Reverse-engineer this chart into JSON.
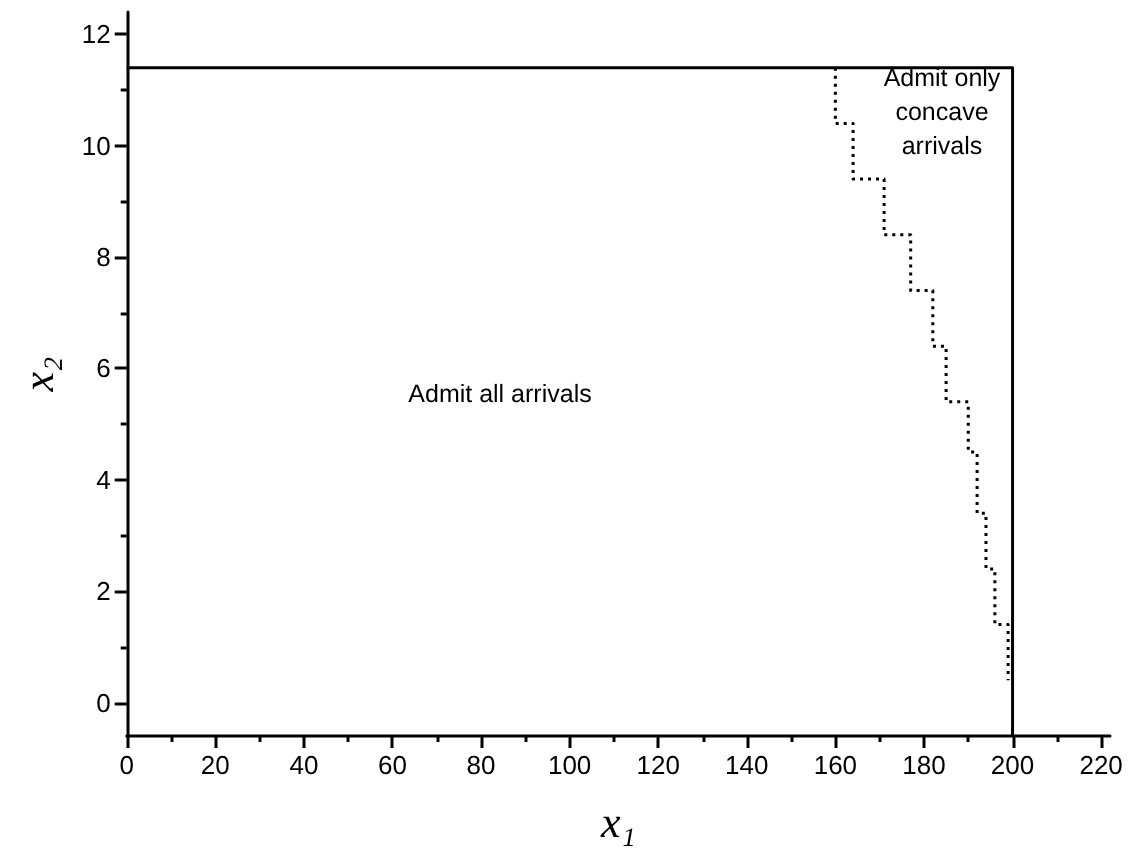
{
  "chart_data": {
    "type": "line",
    "xlabel": "x₁",
    "ylabel": "x₂",
    "xlim": [
      0,
      222
    ],
    "ylim": [
      -0.6,
      12.4
    ],
    "xticks": [
      0,
      20,
      40,
      60,
      80,
      100,
      120,
      140,
      160,
      180,
      200,
      220
    ],
    "yticks": [
      0,
      2,
      4,
      6,
      8,
      10,
      12
    ],
    "grid": false,
    "marker": "none",
    "series": [
      {
        "color": "#000000",
        "line_style": "solid",
        "x": [
          0,
          200,
          200
        ],
        "values": [
          11.4,
          11.4,
          -0.6
        ]
      },
      {
        "type": "step",
        "color": "#000000",
        "line_style": "dotted",
        "x": [
          160,
          164,
          171,
          177,
          182,
          185,
          190,
          192,
          194,
          196,
          199,
          199
        ],
        "values": [
          11.4,
          10.4,
          9.4,
          8.4,
          7.4,
          6.4,
          5.4,
          4.5,
          3.4,
          2.4,
          1.4,
          0.4
        ]
      }
    ],
    "annotations": [
      "Admit all arrivals",
      "Admit only\nconcave\narrivals"
    ]
  }
}
